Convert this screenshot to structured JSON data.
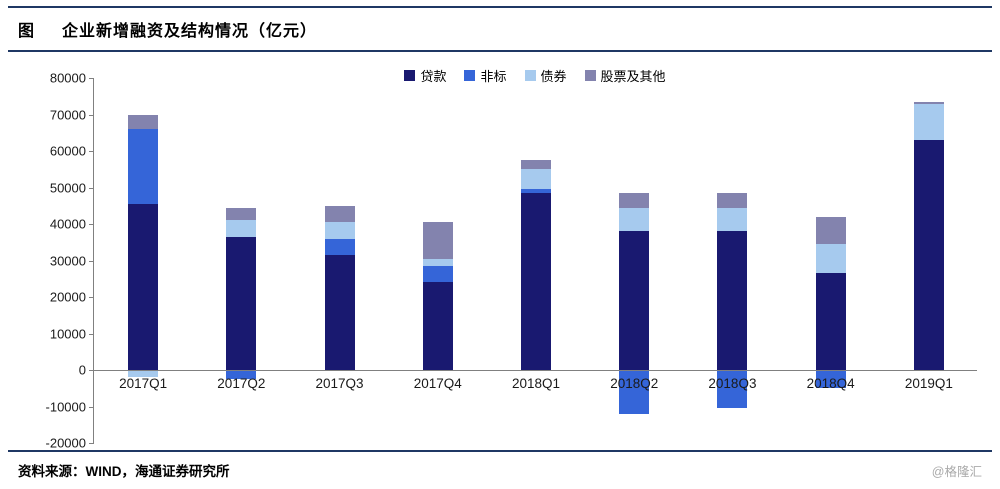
{
  "header": {
    "tag": "图",
    "title": "企业新增融资及结构情况（亿元）"
  },
  "footer": {
    "source": "资料来源：WIND，海通证券研究所",
    "watermark": "@格隆汇"
  },
  "colors": {
    "rule": "#1F3864",
    "axis": "#808080"
  },
  "chart_data": {
    "type": "bar",
    "stacked": true,
    "title": "企业新增融资及结构情况（亿元）",
    "xlabel": "",
    "ylabel": "",
    "grid": false,
    "legend_position": "top-center",
    "ylim": [
      -20000,
      80000
    ],
    "yticks": [
      80000,
      70000,
      60000,
      50000,
      40000,
      30000,
      20000,
      10000,
      0,
      -10000,
      -20000
    ],
    "categories": [
      "2017Q1",
      "2017Q2",
      "2017Q3",
      "2017Q4",
      "2018Q1",
      "2018Q2",
      "2018Q3",
      "2018Q4",
      "2019Q1"
    ],
    "series": [
      {
        "name": "贷款",
        "color": "#191970",
        "values": [
          45500,
          36500,
          31500,
          24000,
          48500,
          38000,
          38000,
          26500,
          63000
        ]
      },
      {
        "name": "非标",
        "color": "#3565D8",
        "values": [
          20500,
          -2500,
          4500,
          4500,
          1000,
          -12000,
          -10500,
          -5000,
          0
        ]
      },
      {
        "name": "债券",
        "color": "#A6CAEE",
        "values": [
          -2000,
          4500,
          4500,
          2000,
          5500,
          6500,
          6500,
          8000,
          10000
        ]
      },
      {
        "name": "股票及其他",
        "color": "#8383AE",
        "values": [
          4000,
          3500,
          4500,
          10000,
          2500,
          4000,
          4000,
          7500,
          500
        ]
      }
    ]
  }
}
